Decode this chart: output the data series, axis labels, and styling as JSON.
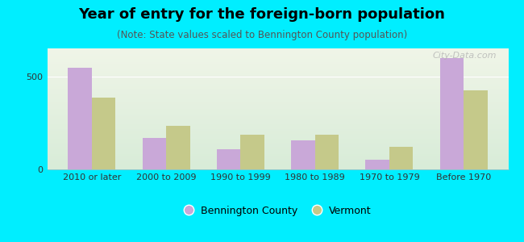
{
  "title": "Year of entry for the foreign-born population",
  "subtitle": "(Note: State values scaled to Bennington County population)",
  "categories": [
    "2010 or later",
    "2000 to 2009",
    "1990 to 1999",
    "1980 to 1989",
    "1970 to 1979",
    "Before 1970"
  ],
  "bennington_values": [
    545,
    170,
    110,
    155,
    52,
    600
  ],
  "vermont_values": [
    385,
    235,
    185,
    185,
    120,
    425
  ],
  "bennington_color": "#c9a8d8",
  "vermont_color": "#c5c98a",
  "background_color": "#00eeff",
  "plot_bg_top": "#f0f5e8",
  "plot_bg_bottom": "#d8ecd8",
  "bar_width": 0.32,
  "ylim": [
    0,
    650
  ],
  "yticks": [
    0,
    500
  ],
  "legend_labels": [
    "Bennington County",
    "Vermont"
  ],
  "watermark": "City-Data.com",
  "title_fontsize": 13,
  "subtitle_fontsize": 8.5,
  "tick_fontsize": 8.0
}
